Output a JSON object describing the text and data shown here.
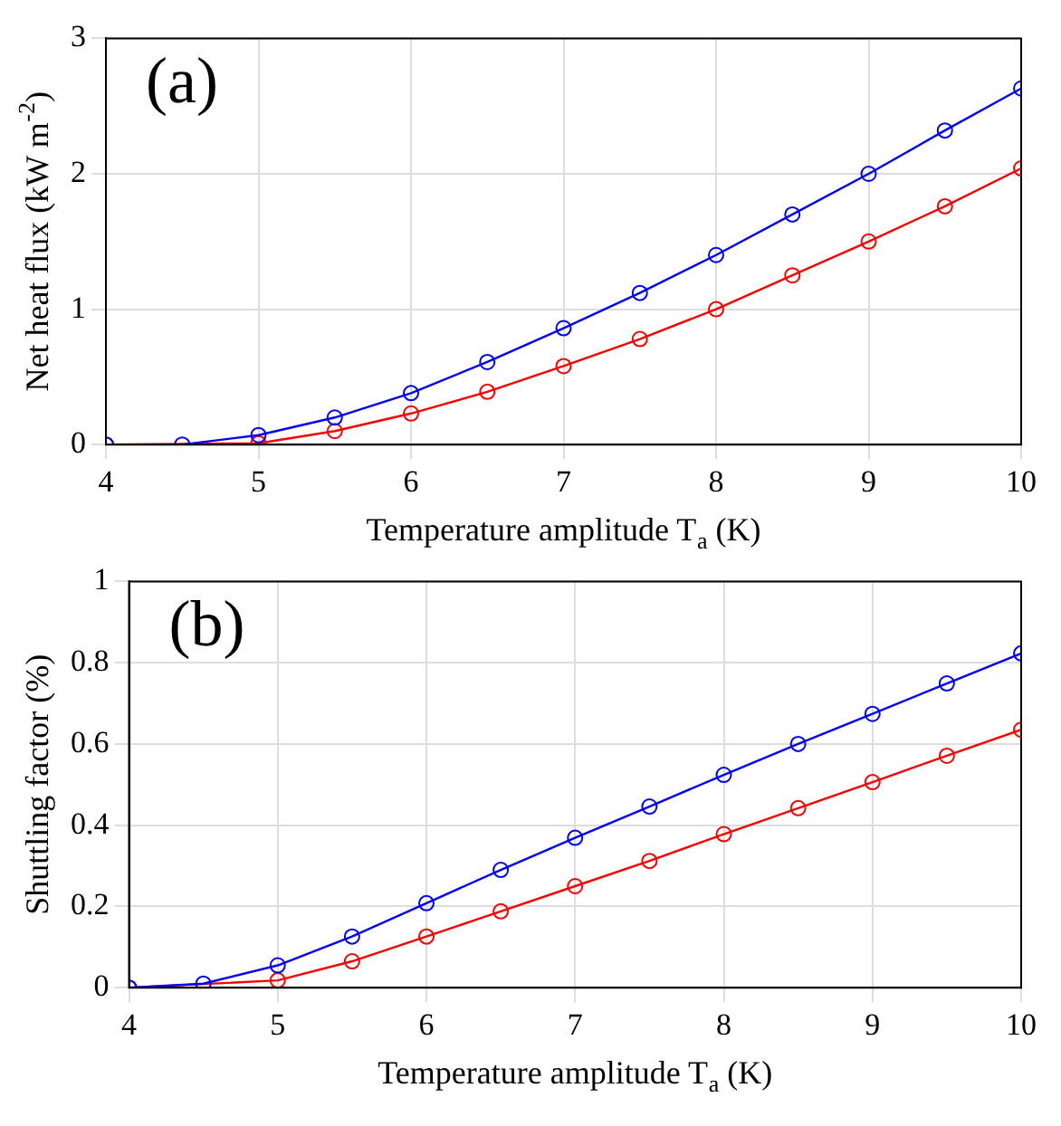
{
  "chart_data": [
    {
      "type": "line",
      "annotations": [
        "(a)"
      ],
      "xlabel": "Temperature amplitude T$_{a}$ (K)",
      "ylabel": "Net heat flux (kW m$^{-2}$)",
      "x": [
        4,
        4.5,
        5,
        5.5,
        6,
        6.5,
        7,
        7.5,
        8,
        8.5,
        9,
        9.5,
        10
      ],
      "series": [
        {
          "color": "#0000ff",
          "values": [
            0,
            0,
            0.07,
            0.2,
            0.38,
            0.61,
            0.86,
            1.12,
            1.4,
            1.7,
            2.0,
            2.32,
            2.63
          ]
        },
        {
          "color": "#ff0000",
          "values": [
            0,
            null,
            0.01,
            0.1,
            0.23,
            0.39,
            0.58,
            0.78,
            1.0,
            1.25,
            1.5,
            1.76,
            2.04
          ]
        }
      ],
      "xlim": [
        4,
        10
      ],
      "xticks": [
        4,
        5,
        6,
        7,
        8,
        9,
        10
      ],
      "ylim": [
        0,
        3
      ],
      "yticks": [
        0,
        1,
        2,
        3
      ],
      "grid": true,
      "marker": "circle",
      "line_style": "solid"
    },
    {
      "type": "line",
      "annotations": [
        "(b)"
      ],
      "xlabel": "Temperature amplitude T$_{a}$ (K)",
      "ylabel": "Shuttling factor (%)",
      "x": [
        4,
        4.5,
        5,
        5.5,
        6,
        6.5,
        7,
        7.5,
        8,
        8.5,
        9,
        9.5,
        10
      ],
      "series": [
        {
          "color": "#0000ff",
          "values": [
            0,
            0.01,
            0.055,
            0.126,
            0.208,
            0.29,
            0.369,
            0.446,
            0.524,
            0.6,
            0.674,
            0.749,
            0.823
          ]
        },
        {
          "color": "#ff0000",
          "values": [
            0,
            null,
            0.018,
            0.065,
            0.126,
            0.188,
            0.25,
            0.312,
            0.378,
            0.442,
            0.506,
            0.571,
            0.635
          ]
        }
      ],
      "xlim": [
        4,
        10
      ],
      "xticks": [
        4,
        5,
        6,
        7,
        8,
        9,
        10
      ],
      "ylim": [
        0,
        1
      ],
      "yticks": [
        0,
        0.2,
        0.4,
        0.6,
        0.8,
        1
      ],
      "grid": true,
      "marker": "circle",
      "line_style": "solid"
    }
  ]
}
